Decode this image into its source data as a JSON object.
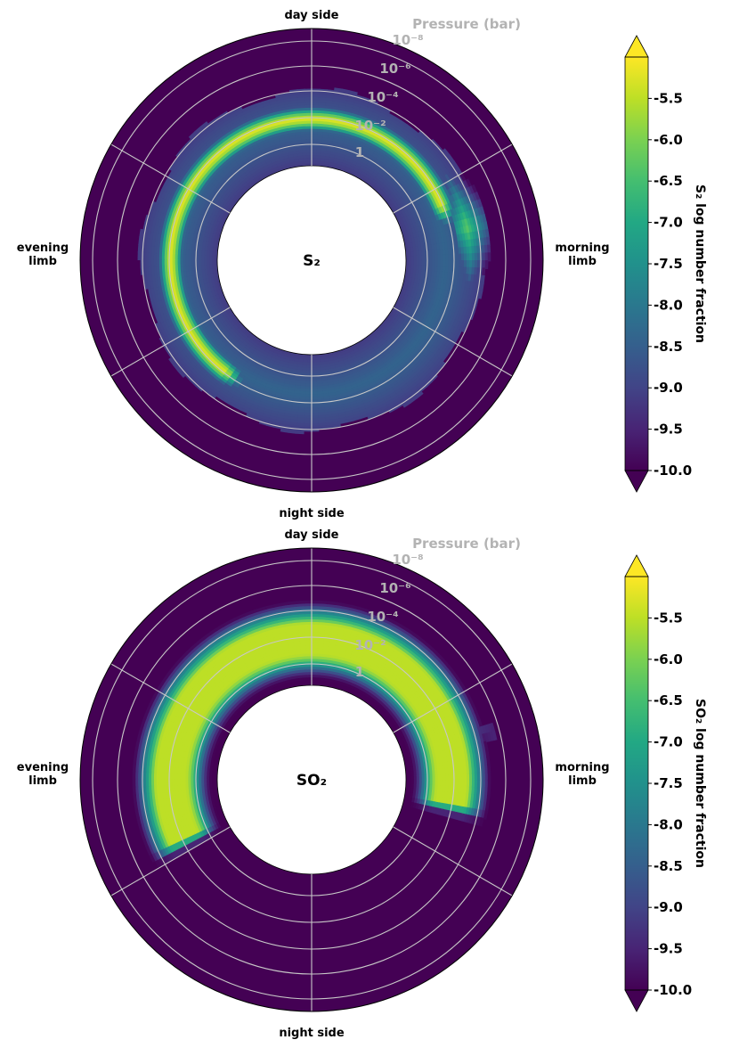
{
  "chart_data": [
    {
      "type": "polar-heatmap",
      "species": "S₂",
      "title": "",
      "orientation_labels": {
        "top": "day side",
        "bottom": "night side",
        "left": "evening\nlimb",
        "right": "morning\nlimb"
      },
      "radial_axis": {
        "label": "Pressure (bar)",
        "ticks": [
          "10⁻⁸",
          "10⁻⁶",
          "10⁻⁴",
          "10⁻²",
          "1"
        ],
        "log10_pressure_range_bar": [
          2,
          -9
        ]
      },
      "angular_gridlines_deg": [
        0,
        60,
        120,
        180,
        240,
        300
      ],
      "colorbar": {
        "label": "S₂ log number fraction",
        "ticks": [
          "-5.5",
          "-6.0",
          "-6.5",
          "-7.0",
          "-7.5",
          "-8.0",
          "-8.5",
          "-9.0",
          "-9.5",
          "-10.0"
        ],
        "range": [
          -10.0,
          -5.0
        ],
        "extend": "both",
        "colormap": "viridis"
      },
      "features": [
        {
          "region": "nightside-arc",
          "angle_deg": [
            205,
            80
          ],
          "log10_pressure_bar": [
            0.5,
            -1.5
          ],
          "log_number_fraction": -5.4
        },
        {
          "region": "dayside-band",
          "angle_deg": [
            0,
            360
          ],
          "log10_pressure_bar": [
            1.5,
            -2.0
          ],
          "log_number_fraction": -8.5
        },
        {
          "region": "morning-limb-spike",
          "angle_deg": [
            60,
            100
          ],
          "log10_pressure_bar": [
            -0.5,
            -2.0
          ],
          "log_number_fraction": -6.0
        }
      ]
    },
    {
      "type": "polar-heatmap",
      "species": "SO₂",
      "title": "",
      "orientation_labels": {
        "top": "day side",
        "bottom": "night side",
        "left": "evening\nlimb",
        "right": "morning\nlimb"
      },
      "radial_axis": {
        "label": "Pressure (bar)",
        "ticks": [
          "10⁻⁸",
          "10⁻⁶",
          "10⁻⁴",
          "10⁻²",
          "1"
        ],
        "log10_pressure_range_bar": [
          2,
          -9
        ]
      },
      "angular_gridlines_deg": [
        0,
        60,
        120,
        180,
        240,
        300
      ],
      "colorbar": {
        "label": "SO₂ log number fraction",
        "ticks": [
          "-5.5",
          "-6.0",
          "-6.5",
          "-7.0",
          "-7.5",
          "-8.0",
          "-8.5",
          "-9.0",
          "-9.5",
          "-10.0"
        ],
        "range": [
          -10.0,
          -5.0
        ],
        "extend": "both",
        "colormap": "viridis"
      },
      "features": [
        {
          "region": "nightside-arc",
          "angle_deg": [
            240,
            105
          ],
          "log10_pressure_bar": [
            0.5,
            -3.0
          ],
          "log_number_fraction": -5.5
        },
        {
          "region": "morning-limb-streak",
          "angle_deg": [
            70,
            105
          ],
          "log10_pressure_bar": [
            -0.5,
            -1.5
          ],
          "log_number_fraction": -9.0
        }
      ]
    }
  ]
}
